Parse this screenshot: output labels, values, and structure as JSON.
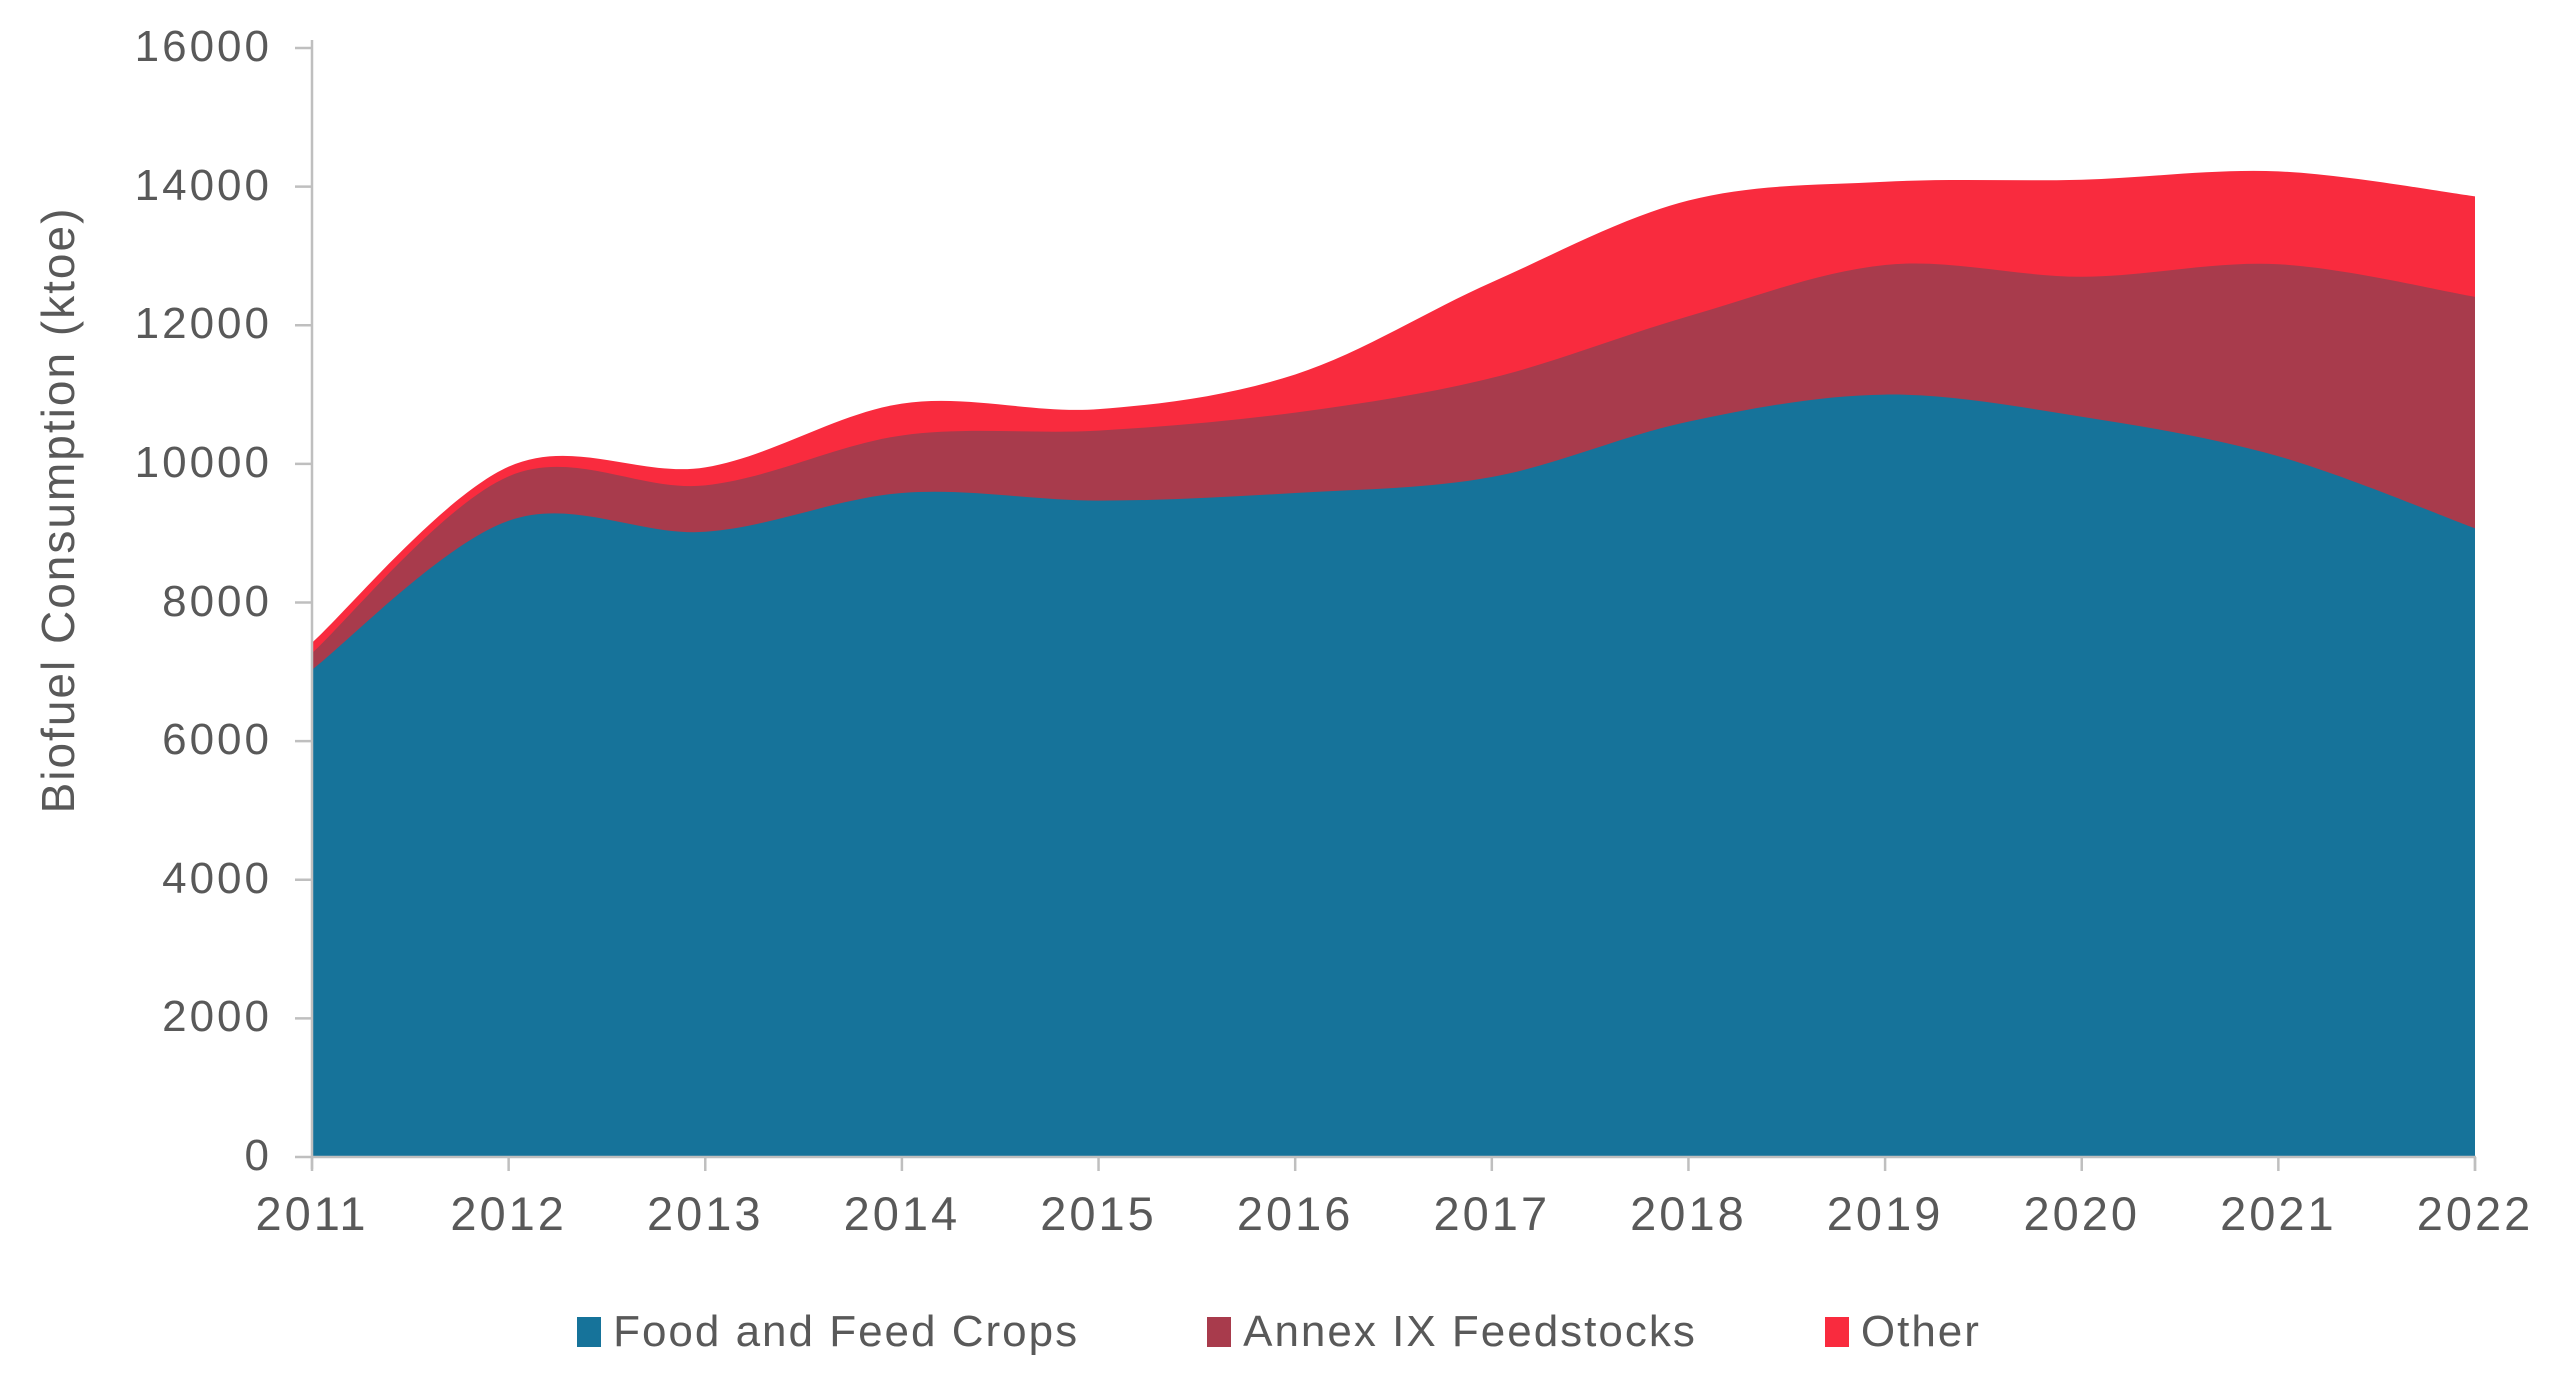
{
  "y_axis": {
    "title": "Biofuel Consumption (ktoe)",
    "tick_labels": [
      "0",
      "2000",
      "4000",
      "6000",
      "8000",
      "10000",
      "12000",
      "14000",
      "16000"
    ],
    "min": 0,
    "max": 16000,
    "step": 2000
  },
  "x_axis": {
    "tick_labels": [
      "2011",
      "2012",
      "2013",
      "2014",
      "2015",
      "2016",
      "2017",
      "2018",
      "2019",
      "2020",
      "2021",
      "2022"
    ]
  },
  "colors": {
    "axis_line": "#BFBFBF",
    "text": "#595959",
    "background": "#FFFFFF"
  },
  "chart_data": {
    "type": "area",
    "stacked": true,
    "smooth": true,
    "grid": false,
    "legend_position": "bottom",
    "title": "",
    "xlabel": "",
    "ylabel": "Biofuel Consumption (ktoe)",
    "ylim": [
      0,
      16000
    ],
    "categories": [
      2011,
      2012,
      2013,
      2014,
      2015,
      2016,
      2017,
      2018,
      2019,
      2020,
      2021,
      2022
    ],
    "series": [
      {
        "name": "Food and Feed Crops",
        "color": "#16739A",
        "values": [
          7030,
          9180,
          9020,
          9580,
          9470,
          9580,
          9810,
          10610,
          11000,
          10680,
          10110,
          9070
        ]
      },
      {
        "name": "Annex IX Feedstocks",
        "color": "#A83B4C",
        "values": [
          240,
          640,
          670,
          830,
          1010,
          1160,
          1430,
          1520,
          1870,
          2020,
          2770,
          3340
        ]
      },
      {
        "name": "Other",
        "color": "#F92B3E",
        "values": [
          150,
          140,
          260,
          460,
          310,
          550,
          1380,
          1670,
          1200,
          1400,
          1340,
          1450
        ]
      }
    ],
    "stacked_totals": [
      7420,
      9960,
      9950,
      10870,
      10790,
      11290,
      12620,
      13800,
      14070,
      14100,
      14220,
      13860
    ]
  }
}
